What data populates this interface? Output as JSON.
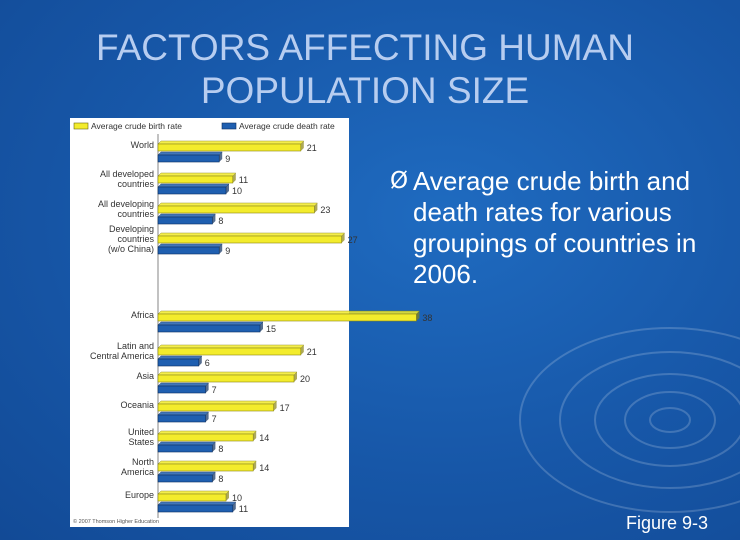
{
  "slide": {
    "title_line1": "FACTORS AFFECTING HUMAN",
    "title_line2": "POPULATION SIZE",
    "bullet": "Average crude  birth and death rates for various groupings of countries in 2006.",
    "bullet_marker": "Ø",
    "figure_label": "Figure 9-3",
    "colors": {
      "background": "#1757a8",
      "title": "#b7cdf0",
      "birth": "#f3ec2c",
      "death": "#1f5fb0"
    }
  },
  "chart_data": {
    "type": "bar",
    "orientation": "horizontal",
    "categories": [
      "World",
      "All developed countries",
      "All developing countries",
      "Developing countries (w/o China)",
      "Africa",
      "Latin and Central America",
      "Asia",
      "Oceania",
      "United States",
      "North America",
      "Europe"
    ],
    "category_lines": [
      [
        "World"
      ],
      [
        "All developed",
        "countries"
      ],
      [
        "All developing",
        "countries"
      ],
      [
        "Developing",
        "countries",
        "(w/o China)"
      ],
      [
        "Africa"
      ],
      [
        "Latin and",
        "Central America"
      ],
      [
        "Asia"
      ],
      [
        "Oceania"
      ],
      [
        "United",
        "States"
      ],
      [
        "North",
        "America"
      ],
      [
        "Europe"
      ]
    ],
    "series": [
      {
        "name": "Average crude birth rate",
        "values": [
          21,
          11,
          23,
          27,
          38,
          21,
          20,
          17,
          14,
          14,
          10
        ],
        "color": "#f3ec2c"
      },
      {
        "name": "Average crude death rate",
        "values": [
          9,
          10,
          8,
          9,
          15,
          6,
          7,
          7,
          8,
          8,
          11
        ],
        "color": "#1f5fb0"
      }
    ],
    "legend_position": "top",
    "grid": false,
    "xlim": [
      0,
      40
    ],
    "copyright": "© 2007 Thomson Higher Education"
  }
}
